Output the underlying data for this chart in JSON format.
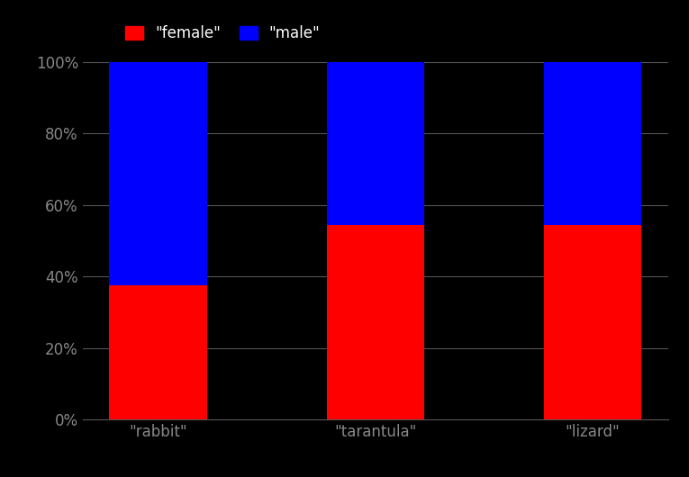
{
  "categories": [
    "\"rabbit\"",
    "\"tarantula\"",
    "\"lizard\""
  ],
  "female_values": [
    37.5,
    54.545454545,
    54.545454545
  ],
  "male_values": [
    62.5,
    45.454545455,
    45.454545455
  ],
  "female_color": "#ff0000",
  "male_color": "#0000ff",
  "female_label": "\"female\"",
  "male_label": "\"male\"",
  "background_color": "#000000",
  "tick_label_color": "#888888",
  "text_color": "#ffffff",
  "grid_color": "#555555",
  "spine_color": "#555555",
  "ylim": [
    0,
    100
  ],
  "yticks": [
    0,
    20,
    40,
    60,
    80,
    100
  ],
  "ytick_labels": [
    "0%",
    "20%",
    "40%",
    "60%",
    "80%",
    "100%"
  ],
  "bar_width": 0.45,
  "figsize": [
    7.65,
    5.3
  ],
  "dpi": 100
}
